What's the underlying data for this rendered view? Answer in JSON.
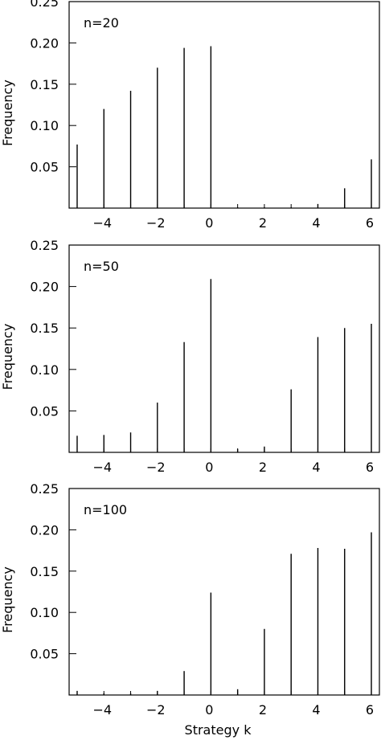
{
  "chart_data": [
    {
      "type": "bar",
      "annotation": "n=20",
      "xlabel": "",
      "ylabel": "Frequency",
      "xlim": [
        -5.3,
        6.3
      ],
      "ylim": [
        0,
        0.25
      ],
      "xticks": [
        -4,
        -2,
        0,
        2,
        4,
        6
      ],
      "xtick_labels": [
        "−4",
        "−2",
        "0",
        "2",
        "4",
        "6"
      ],
      "yticks": [
        0.05,
        0.1,
        0.15,
        0.2,
        0.25
      ],
      "ytick_labels": [
        "0.05",
        "0.10",
        "0.15",
        "0.20",
        "0.25"
      ],
      "x": [
        -5,
        -4,
        -3,
        -2,
        -1,
        0,
        1,
        2,
        3,
        4,
        5,
        6
      ],
      "values": [
        0.077,
        0.12,
        0.142,
        0.17,
        0.194,
        0.196,
        0.001,
        0.001,
        0.001,
        0.005,
        0.024,
        0.059
      ]
    },
    {
      "type": "bar",
      "annotation": "n=50",
      "xlabel": "",
      "ylabel": "Frequency",
      "xlim": [
        -5.3,
        6.3
      ],
      "ylim": [
        0,
        0.25
      ],
      "xticks": [
        -4,
        -2,
        0,
        2,
        4,
        6
      ],
      "xtick_labels": [
        "−4",
        "−2",
        "0",
        "2",
        "4",
        "6"
      ],
      "yticks": [
        0.05,
        0.1,
        0.15,
        0.2,
        0.25
      ],
      "ytick_labels": [
        "0.05",
        "0.10",
        "0.15",
        "0.20",
        "0.25"
      ],
      "x": [
        -5,
        -4,
        -3,
        -2,
        -1,
        0,
        1,
        2,
        3,
        4,
        5,
        6
      ],
      "values": [
        0.02,
        0.021,
        0.024,
        0.06,
        0.133,
        0.209,
        0.004,
        0.007,
        0.076,
        0.139,
        0.15,
        0.155
      ]
    },
    {
      "type": "bar",
      "annotation": "n=100",
      "xlabel": "Strategy  k",
      "ylabel": "Frequency",
      "xlim": [
        -5.3,
        6.3
      ],
      "ylim": [
        0,
        0.25
      ],
      "xticks": [
        -4,
        -2,
        0,
        2,
        4,
        6
      ],
      "xtick_labels": [
        "−4",
        "−2",
        "0",
        "2",
        "4",
        "6"
      ],
      "yticks": [
        0.05,
        0.1,
        0.15,
        0.2,
        0.25
      ],
      "ytick_labels": [
        "0.05",
        "0.10",
        "0.15",
        "0.20",
        "0.25"
      ],
      "x": [
        -5,
        -4,
        -3,
        -2,
        -1,
        0,
        1,
        2,
        3,
        4,
        5,
        6
      ],
      "values": [
        0.005,
        0.002,
        0.002,
        0.005,
        0.029,
        0.124,
        0.007,
        0.08,
        0.171,
        0.178,
        0.177,
        0.197
      ]
    }
  ]
}
